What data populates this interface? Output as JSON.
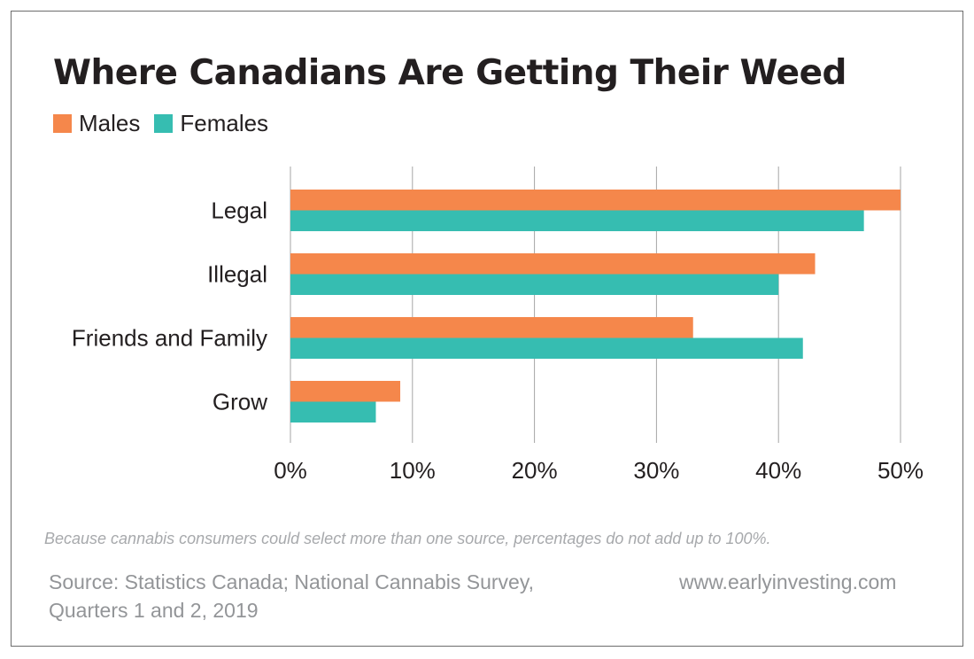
{
  "title": "Where Canadians Are Getting Their Weed",
  "note": "Because cannabis consumers could select more than one source, percentages do not add up to 100%.",
  "source_line1": "Source: Statistics Canada; National Cannabis Survey,",
  "source_line2": "Quarters 1 and 2, 2019",
  "website": "www.earlyinvesting.com",
  "chart_data": {
    "type": "bar",
    "orientation": "horizontal",
    "categories": [
      "Legal",
      "Illegal",
      "Friends and Family",
      "Grow"
    ],
    "series": [
      {
        "name": "Males",
        "color": "#f5874b",
        "values": [
          50,
          43,
          33,
          9
        ]
      },
      {
        "name": "Females",
        "color": "#36bdb1",
        "values": [
          47,
          40,
          42,
          7
        ]
      }
    ],
    "xlim": [
      0,
      50
    ],
    "xticks": [
      0,
      10,
      20,
      30,
      40,
      50
    ],
    "tick_labels": [
      "0%",
      "10%",
      "20%",
      "30%",
      "40%",
      "50%"
    ],
    "grid": "vertical",
    "legend_position": "top-left"
  }
}
